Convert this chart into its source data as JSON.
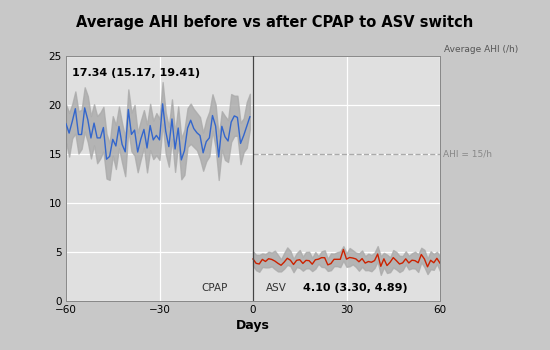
{
  "title": "Average AHI before vs after CPAP to ASV switch",
  "xlabel": "Days",
  "ylabel": "Average AHI (/h)",
  "xlim": [
    -60,
    60
  ],
  "ylim": [
    0,
    25
  ],
  "yticks": [
    0,
    5,
    10,
    15,
    20,
    25
  ],
  "xticks": [
    -60,
    -30,
    0,
    30,
    60
  ],
  "ahi_threshold": 15,
  "ahi_threshold_label": "AHI = 15/h",
  "cpap_mean": 17.34,
  "cpap_ci_low": 15.17,
  "cpap_ci_high": 19.41,
  "cpap_label": "17.34 (15.17, 19.41)",
  "asv_mean": 4.1,
  "asv_ci_low": 3.3,
  "asv_ci_high": 4.89,
  "asv_label": "4.10 (3.30, 4.89)",
  "cpap_region_label": "CPAP",
  "asv_region_label": "ASV",
  "fig_bg_color": "#c8c8c8",
  "title_bg_color": "#c0c0c0",
  "plot_bg_color": "#e0e0e0",
  "grid_color": "#ffffff",
  "blue_line_color": "#3366cc",
  "red_line_color": "#cc2200",
  "ci_fill_color": "#aaaaaa",
  "dashed_line_color": "#aaaaaa",
  "seed": 42
}
